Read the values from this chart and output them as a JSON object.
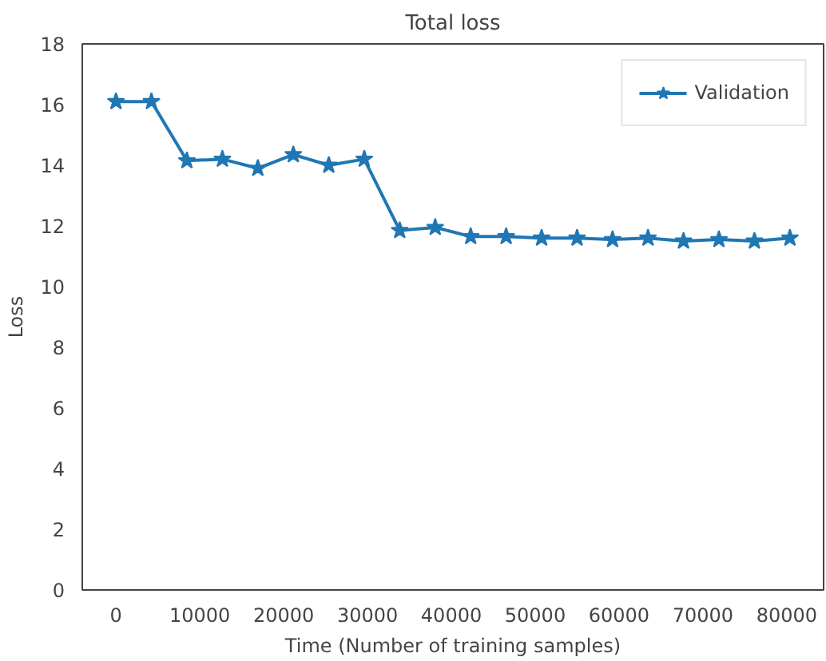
{
  "chart_data": {
    "type": "line",
    "title": "Total loss",
    "xlabel": "Time (Number of training samples)",
    "ylabel": "Loss",
    "x": [
      0,
      4230,
      8460,
      12690,
      16920,
      21150,
      25380,
      29610,
      33840,
      38070,
      42300,
      46530,
      50760,
      54990,
      59220,
      63450,
      67680,
      71910,
      76140,
      80370
    ],
    "series": [
      {
        "name": "Validation",
        "color": "#1f77b4",
        "values": [
          16.1,
          16.1,
          14.15,
          14.2,
          13.9,
          14.35,
          14.0,
          14.2,
          11.85,
          11.95,
          11.65,
          11.65,
          11.6,
          11.6,
          11.55,
          11.6,
          11.5,
          11.55,
          11.5,
          11.6
        ]
      }
    ],
    "xlim": [
      -4018,
      84390
    ],
    "ylim": [
      0,
      18
    ],
    "xticks": [
      0,
      10000,
      20000,
      30000,
      40000,
      50000,
      60000,
      70000,
      80000
    ],
    "yticks": [
      0,
      2,
      4,
      6,
      8,
      10,
      12,
      14,
      16,
      18
    ],
    "grid": false,
    "legend": "top right",
    "marker": "star",
    "line_style": "solid"
  }
}
